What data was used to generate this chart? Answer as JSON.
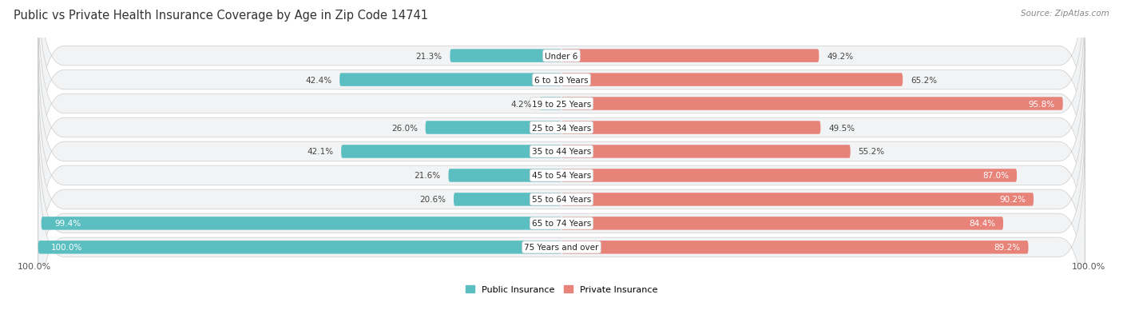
{
  "title": "Public vs Private Health Insurance Coverage by Age in Zip Code 14741",
  "source": "Source: ZipAtlas.com",
  "categories": [
    "Under 6",
    "6 to 18 Years",
    "19 to 25 Years",
    "25 to 34 Years",
    "35 to 44 Years",
    "45 to 54 Years",
    "55 to 64 Years",
    "65 to 74 Years",
    "75 Years and over"
  ],
  "public_values": [
    21.3,
    42.4,
    4.2,
    26.0,
    42.1,
    21.6,
    20.6,
    99.4,
    100.0
  ],
  "private_values": [
    49.2,
    65.2,
    95.8,
    49.5,
    55.2,
    87.0,
    90.2,
    84.4,
    89.2
  ],
  "public_color": "#5bbfc2",
  "private_color": "#e8837a",
  "public_color_light": "#a8dfe1",
  "private_color_light": "#f5c0bb",
  "row_bg": "#f0f0f0",
  "row_border": "#d8d8d8",
  "axis_label_left": "100.0%",
  "axis_label_right": "100.0%",
  "max_value": 100.0,
  "title_fontsize": 10.5,
  "source_fontsize": 7.5,
  "label_fontsize": 8.0,
  "category_fontsize": 7.5,
  "value_fontsize": 7.5,
  "legend_fontsize": 8.0
}
